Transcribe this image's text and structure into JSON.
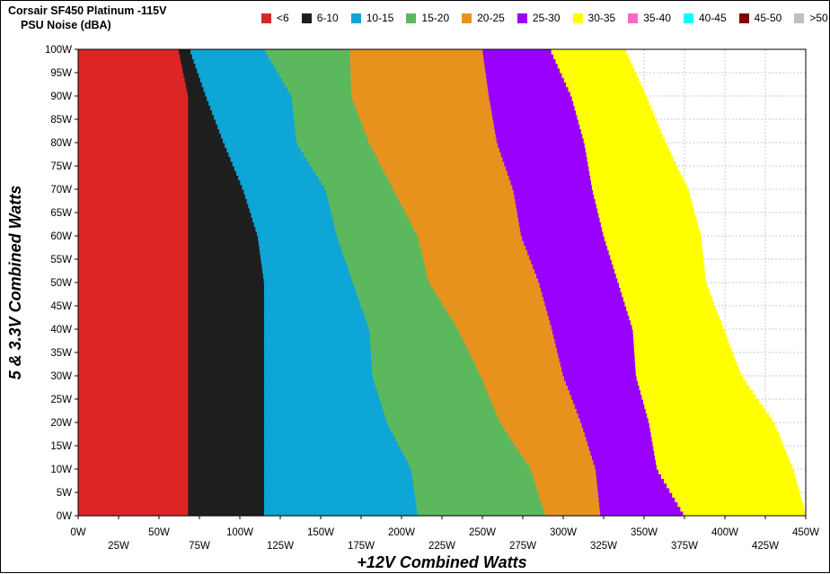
{
  "title": "Corsair SF450 Platinum -115V",
  "subtitle": "PSU Noise (dBA)",
  "chart_data": {
    "type": "heatmap",
    "xlabel": "+12V Combined Watts",
    "ylabel": "5 & 3.3V Combined Watts",
    "xlim": [
      0,
      450
    ],
    "ylim": [
      0,
      100
    ],
    "x_ticks": [
      "0W",
      "25W",
      "50W",
      "75W",
      "100W",
      "125W",
      "150W",
      "175W",
      "200W",
      "225W",
      "250W",
      "275W",
      "300W",
      "325W",
      "350W",
      "375W",
      "400W",
      "425W",
      "450W"
    ],
    "y_ticks": [
      "0W",
      "5W",
      "10W",
      "15W",
      "20W",
      "25W",
      "30W",
      "35W",
      "40W",
      "45W",
      "50W",
      "55W",
      "60W",
      "65W",
      "70W",
      "75W",
      "80W",
      "85W",
      "90W",
      "95W",
      "100W"
    ],
    "grid": true,
    "legend_position": "top",
    "legend": [
      {
        "label": "<6",
        "color": "#dc2626"
      },
      {
        "label": "6-10",
        "color": "#1e1e1e"
      },
      {
        "label": "10-15",
        "color": "#0ea5d7"
      },
      {
        "label": "15-20",
        "color": "#5cb85c"
      },
      {
        "label": "20-25",
        "color": "#e8921e"
      },
      {
        "label": "25-30",
        "color": "#9900ff"
      },
      {
        "label": "30-35",
        "color": "#ffff00"
      },
      {
        "label": "35-40",
        "color": "#ff66cc"
      },
      {
        "label": "40-45",
        "color": "#00ffff"
      },
      {
        "label": "45-50",
        "color": "#800000"
      },
      {
        "label": ">50",
        "color": "#c0c0c0"
      }
    ],
    "y_samples": [
      0,
      10,
      20,
      30,
      40,
      50,
      60,
      70,
      80,
      90,
      100
    ],
    "band_upper_bounds": [
      {
        "band": "<6",
        "x_at_y": [
          68,
          68,
          68,
          68,
          68,
          68,
          68,
          68,
          68,
          68,
          62
        ]
      },
      {
        "band": "6-10",
        "x_at_y": [
          115,
          115,
          115,
          115,
          115,
          115,
          111,
          102,
          90,
          79,
          69
        ]
      },
      {
        "band": "10-15",
        "x_at_y": [
          210,
          206,
          191,
          182,
          180,
          170,
          160,
          153,
          135,
          132,
          115
        ]
      },
      {
        "band": "15-20",
        "x_at_y": [
          289,
          280,
          261,
          249,
          235,
          217,
          210,
          195,
          180,
          169,
          168
        ]
      },
      {
        "band": "20-25",
        "x_at_y": [
          323,
          320,
          311,
          300,
          293,
          285,
          274,
          269,
          259,
          254,
          250
        ]
      },
      {
        "band": "25-30",
        "x_at_y": [
          375,
          358,
          353,
          345,
          343,
          334,
          325,
          318,
          313,
          305,
          292
        ]
      },
      {
        "band": "30-35",
        "x_at_y": [
          450,
          442,
          430,
          410,
          399,
          388,
          385,
          377,
          363,
          351,
          338
        ]
      }
    ]
  }
}
